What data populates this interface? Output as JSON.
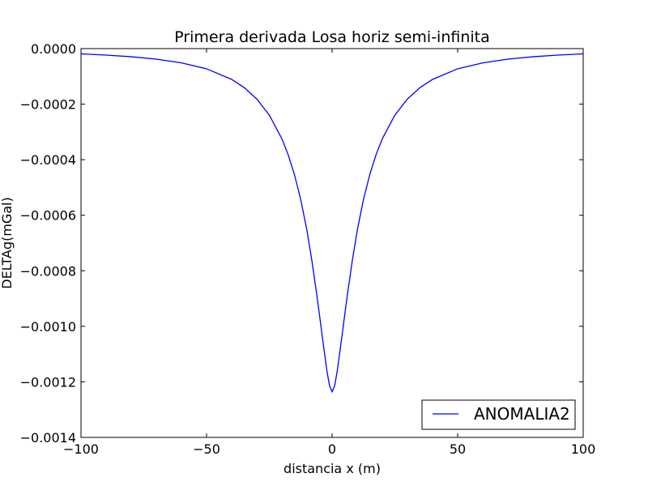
{
  "chart_data": {
    "type": "line",
    "title": "Primera derivada Losa horiz semi-infinita",
    "xlabel": "distancia x (m)",
    "ylabel": "DELTAg(mGal)",
    "xlim": [
      -100,
      100
    ],
    "ylim": [
      -0.0014,
      0.0
    ],
    "xticks": [
      -100,
      -50,
      0,
      50,
      100
    ],
    "xtick_labels": [
      "−100",
      "−50",
      "0",
      "50",
      "100"
    ],
    "yticks": [
      0.0,
      -0.0002,
      -0.0004,
      -0.0006,
      -0.0008,
      -0.001,
      -0.0012,
      -0.0014
    ],
    "ytick_labels": [
      "0.0000",
      "−0.0002",
      "−0.0004",
      "−0.0006",
      "−0.0008",
      "−0.0010",
      "−0.0012",
      "−0.0014"
    ],
    "grid": false,
    "legend_position": "lower-right",
    "series": [
      {
        "name": "ANOMALIA2",
        "color": "#0000ff",
        "x": [
          -100,
          -90,
          -80,
          -70,
          -60,
          -50,
          -40,
          -35,
          -30,
          -25,
          -20,
          -17.5,
          -15,
          -12.5,
          -10,
          -8,
          -6,
          -5,
          -4,
          -3,
          -2,
          -1,
          0,
          1,
          2,
          3,
          4,
          5,
          6,
          8,
          10,
          12.5,
          15,
          17.5,
          20,
          25,
          30,
          35,
          40,
          50,
          60,
          70,
          80,
          90,
          100
        ],
        "y": [
          -1.89e-05,
          -2.33e-05,
          -2.93e-05,
          -3.8e-05,
          -5.13e-05,
          -7.28e-05,
          -0.0001108,
          -0.0001405,
          -0.0001815,
          -0.0002393,
          -0.0003245,
          -0.0003822,
          -0.0004536,
          -0.0005431,
          -0.0006555,
          -0.0007664,
          -0.0008928,
          -0.0009606,
          -0.0010304,
          -0.0010974,
          -0.0011642,
          -0.0012145,
          -0.0012356,
          -0.0012145,
          -0.0011642,
          -0.0010974,
          -0.0010304,
          -0.0009606,
          -0.0008928,
          -0.0007664,
          -0.0006555,
          -0.0005431,
          -0.0004536,
          -0.0003822,
          -0.0003245,
          -0.0002393,
          -0.0001815,
          -0.0001405,
          -0.0001108,
          -7.28e-05,
          -5.13e-05,
          -3.8e-05,
          -2.93e-05,
          -2.33e-05,
          -1.89e-05
        ]
      }
    ]
  }
}
